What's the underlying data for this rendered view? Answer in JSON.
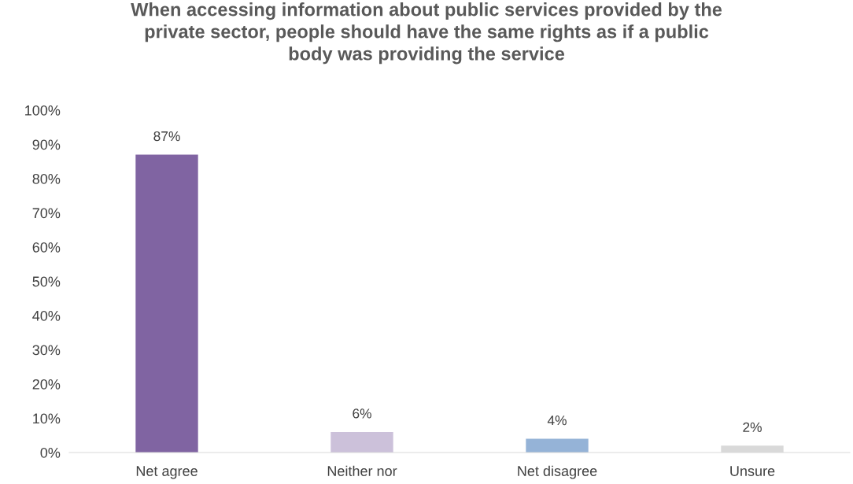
{
  "chart_data": {
    "type": "bar",
    "title": "When accessing information about public services provided by the\nprivate sector, people should have the same rights as if a public\nbody was providing the service",
    "categories": [
      "Net agree",
      "Neither nor",
      "Net disagree",
      "Unsure"
    ],
    "values": [
      87,
      6,
      4,
      2
    ],
    "colors": [
      "#8064a2",
      "#ccc1da",
      "#95b3d7",
      "#d9d9d9"
    ],
    "value_labels": [
      "87%",
      "6%",
      "4%",
      "2%"
    ],
    "ylim": [
      0,
      100
    ],
    "yticks": [
      {
        "value": 0,
        "label": "0%"
      },
      {
        "value": 10,
        "label": "10%"
      },
      {
        "value": 20,
        "label": "20%"
      },
      {
        "value": 30,
        "label": "30%"
      },
      {
        "value": 40,
        "label": "40%"
      },
      {
        "value": 50,
        "label": "50%"
      },
      {
        "value": 60,
        "label": "60%"
      },
      {
        "value": 70,
        "label": "70%"
      },
      {
        "value": 80,
        "label": "80%"
      },
      {
        "value": 90,
        "label": "90%"
      },
      {
        "value": 100,
        "label": "100%"
      }
    ],
    "grid": false,
    "legend": false
  }
}
